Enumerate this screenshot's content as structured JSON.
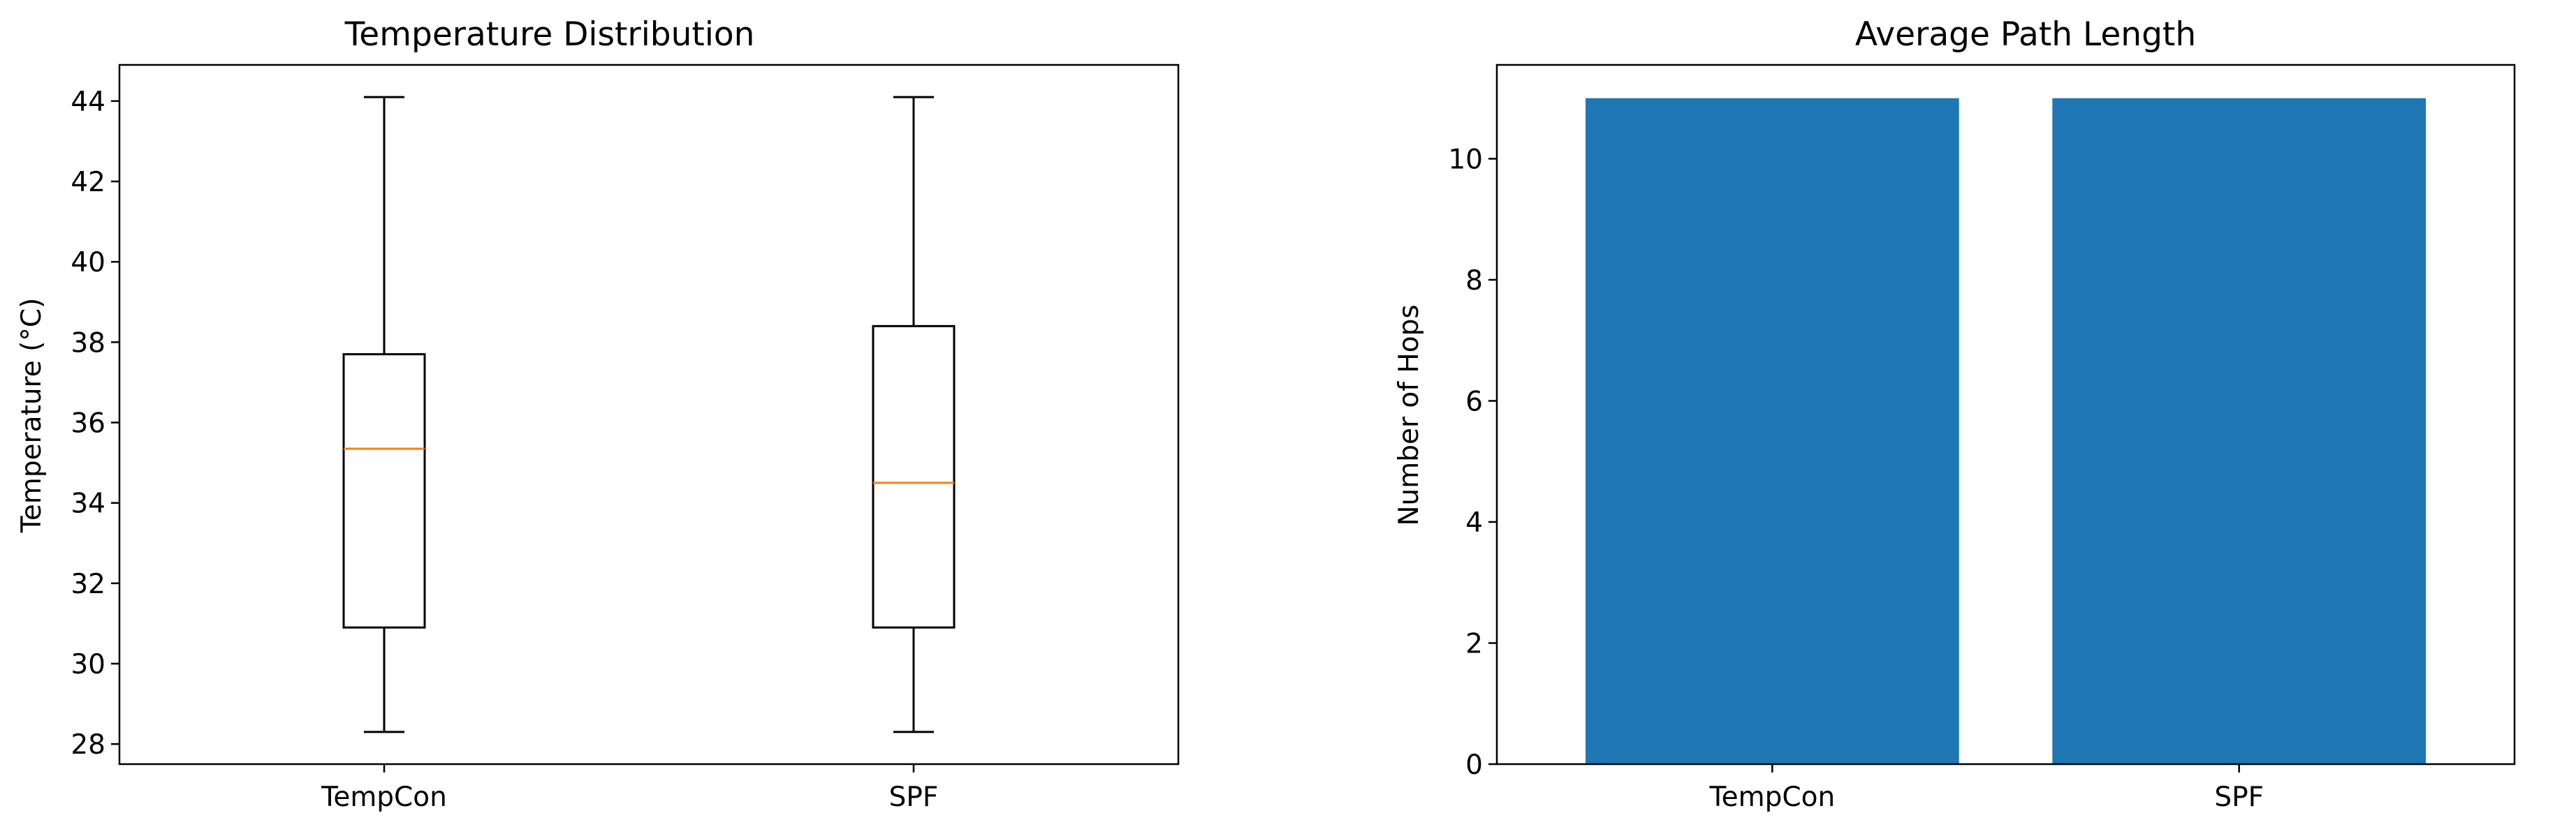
{
  "chart_data": [
    {
      "type": "box",
      "title": "Temperature Distribution",
      "xlabel": "",
      "ylabel": "Temperature (°C)",
      "ylim": [
        27.5,
        44.9
      ],
      "yticks": [
        28,
        30,
        32,
        34,
        36,
        38,
        40,
        42,
        44
      ],
      "grid": false,
      "categories": [
        "TempCon",
        "SPF"
      ],
      "boxes": [
        {
          "category": "TempCon",
          "whisker_low": 28.3,
          "q1": 30.9,
          "median": 35.35,
          "q3": 37.7,
          "whisker_high": 44.1
        },
        {
          "category": "SPF",
          "whisker_low": 28.3,
          "q1": 30.9,
          "median": 34.5,
          "q3": 38.4,
          "whisker_high": 44.1
        }
      ],
      "colors": {
        "box": "#000000",
        "median": "#ff7f0e"
      }
    },
    {
      "type": "bar",
      "title": "Average Path Length",
      "xlabel": "",
      "ylabel": "Number of Hops",
      "ylim": [
        0,
        11.55
      ],
      "yticks": [
        0,
        2,
        4,
        6,
        8,
        10
      ],
      "grid": false,
      "categories": [
        "TempCon",
        "SPF"
      ],
      "values": [
        11,
        11
      ],
      "colors": {
        "bar": "#1f77b4"
      }
    }
  ]
}
